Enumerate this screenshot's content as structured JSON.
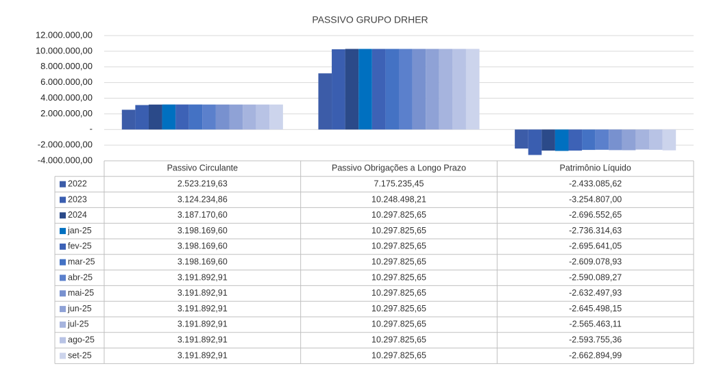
{
  "chart_data": {
    "type": "bar",
    "title": "PASSIVO GRUPO DRHER",
    "categories": [
      "Passivo Circulante",
      "Passivo Obrigações a Longo Prazo",
      "Patrimônio Líquido"
    ],
    "ylim": [
      -4000000,
      12000000
    ],
    "yticks": [
      {
        "value": -4000000,
        "label": "-4.000.000,00"
      },
      {
        "value": -2000000,
        "label": "-2.000.000,00"
      },
      {
        "value": 0,
        "label": "-"
      },
      {
        "value": 2000000,
        "label": "2.000.000,00"
      },
      {
        "value": 4000000,
        "label": "4.000.000,00"
      },
      {
        "value": 6000000,
        "label": "6.000.000,00"
      },
      {
        "value": 8000000,
        "label": "8.000.000,00"
      },
      {
        "value": 10000000,
        "label": "10.000.000,00"
      },
      {
        "value": 12000000,
        "label": "12.000.000,00"
      }
    ],
    "grid": true,
    "series": [
      {
        "name": "2022",
        "color": "#3c5ca8",
        "values": [
          2523219.63,
          7175235.45,
          -2433085.62
        ],
        "value_labels": [
          "2.523.219,63",
          "7.175.235,45",
          "-2.433.085,62"
        ]
      },
      {
        "name": "2023",
        "color": "#3a5eb0",
        "values": [
          3124234.86,
          10248498.21,
          -3254807.0
        ],
        "value_labels": [
          "3.124.234,86",
          "10.248.498,21",
          "-3.254.807,00"
        ]
      },
      {
        "name": "2024",
        "color": "#2b4a89",
        "values": [
          3187170.6,
          10297825.65,
          -2696552.65
        ],
        "value_labels": [
          "3.187.170,60",
          "10.297.825,65",
          "-2.696.552,65"
        ]
      },
      {
        "name": "jan-25",
        "color": "#0070c0",
        "values": [
          3198169.6,
          10297825.65,
          -2736314.63
        ],
        "value_labels": [
          "3.198.169,60",
          "10.297.825,65",
          "-2.736.314,63"
        ]
      },
      {
        "name": "fev-25",
        "color": "#3d62b6",
        "values": [
          3198169.6,
          10297825.65,
          -2695641.05
        ],
        "value_labels": [
          "3.198.169,60",
          "10.297.825,65",
          "-2.695.641,05"
        ]
      },
      {
        "name": "mar-25",
        "color": "#4472c4",
        "values": [
          3198169.6,
          10297825.65,
          -2609078.93
        ],
        "value_labels": [
          "3.198.169,60",
          "10.297.825,65",
          "-2.609.078,93"
        ]
      },
      {
        "name": "abr-25",
        "color": "#5b80cc",
        "values": [
          3191892.91,
          10297825.65,
          -2590089.27
        ],
        "value_labels": [
          "3.191.892,91",
          "10.297.825,65",
          "-2.590.089,27"
        ]
      },
      {
        "name": "mai-25",
        "color": "#7891cf",
        "values": [
          3191892.91,
          10297825.65,
          -2632497.93
        ],
        "value_labels": [
          "3.191.892,91",
          "10.297.825,65",
          "-2.632.497,93"
        ]
      },
      {
        "name": "jun-25",
        "color": "#8fa2d6",
        "values": [
          3191892.91,
          10297825.65,
          -2645498.15
        ],
        "value_labels": [
          "3.191.892,91",
          "10.297.825,65",
          "-2.645.498,15"
        ]
      },
      {
        "name": "jul-25",
        "color": "#a6b4de",
        "values": [
          3191892.91,
          10297825.65,
          -2565463.11
        ],
        "value_labels": [
          "3.191.892,91",
          "10.297.825,65",
          "-2.565.463,11"
        ]
      },
      {
        "name": "ago-25",
        "color": "#b8c3e5",
        "values": [
          3191892.91,
          10297825.65,
          -2593755.36
        ],
        "value_labels": [
          "3.191.892,91",
          "10.297.825,65",
          "-2.593.755,36"
        ]
      },
      {
        "name": "set-25",
        "color": "#ccd4ec",
        "values": [
          3191892.91,
          10297825.65,
          -2662894.99
        ],
        "value_labels": [
          "3.191.892,91",
          "10.297.825,65",
          "-2.662.894,99"
        ]
      }
    ]
  }
}
